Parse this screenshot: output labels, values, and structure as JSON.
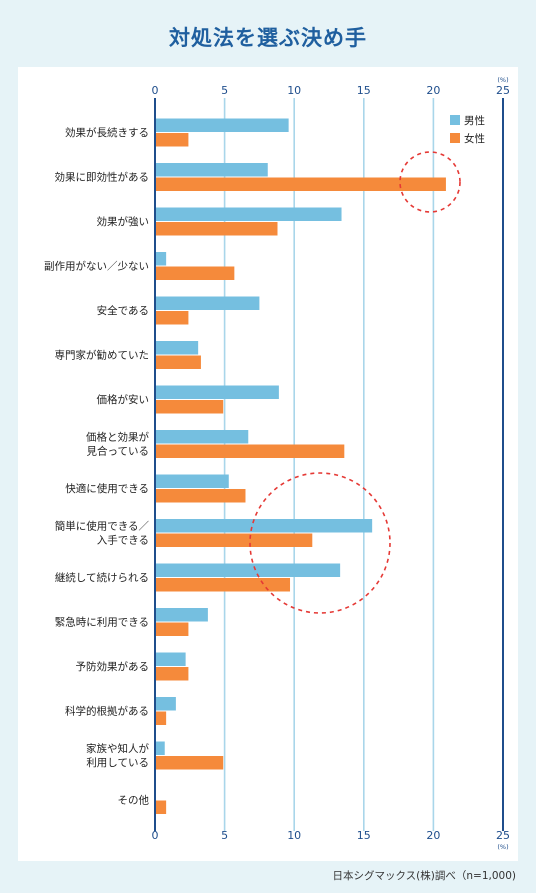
{
  "chart_data": {
    "type": "bar",
    "orientation": "horizontal",
    "title": "対処法を選ぶ決め手",
    "unit": "(%)",
    "xlim": [
      0,
      25
    ],
    "ticks": [
      0,
      5,
      10,
      15,
      20,
      25
    ],
    "grid": true,
    "legend_position": "top-right",
    "categories": [
      [
        "効果が長続きする"
      ],
      [
        "効果に即効性がある"
      ],
      [
        "効果が強い"
      ],
      [
        "副作用がない／少ない"
      ],
      [
        "安全である"
      ],
      [
        "専門家が勧めていた"
      ],
      [
        "価格が安い"
      ],
      [
        "価格と効果が",
        "見合っている"
      ],
      [
        "快適に使用できる"
      ],
      [
        "簡単に使用できる／",
        "入手できる"
      ],
      [
        "継続して続けられる"
      ],
      [
        "緊急時に利用できる"
      ],
      [
        "予防効果がある"
      ],
      [
        "科学的根拠がある"
      ],
      [
        "家族や知人が",
        "利用している"
      ],
      [
        "その他"
      ]
    ],
    "series": [
      {
        "name": "男性",
        "color": "#75bfe0",
        "values": [
          9.6,
          8.1,
          13.4,
          0.8,
          7.5,
          3.1,
          8.9,
          6.7,
          5.3,
          15.6,
          13.3,
          3.8,
          2.2,
          1.5,
          0.7,
          0
        ]
      },
      {
        "name": "女性",
        "color": "#f58a3b",
        "values": [
          2.4,
          20.9,
          8.8,
          5.7,
          2.4,
          3.3,
          4.9,
          13.6,
          6.5,
          11.3,
          9.7,
          2.4,
          2.4,
          0.8,
          4.9,
          0.8
        ]
      }
    ],
    "highlight_color": "#e53935"
  },
  "source_note": "日本シグマックス(株)調べ（n=1,000)"
}
